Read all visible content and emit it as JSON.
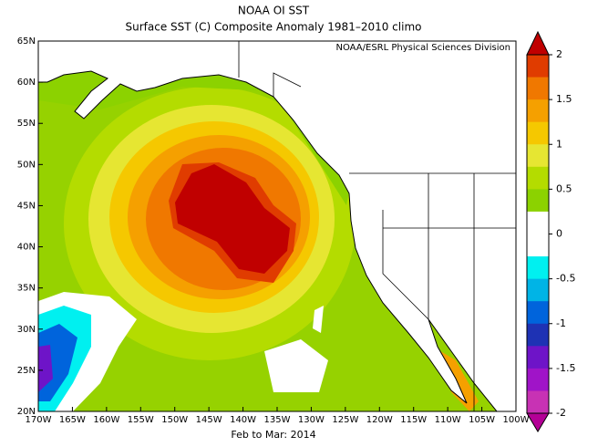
{
  "header": {
    "title": "NOAA OI SST",
    "subtitle": "Surface SST (C) Composite Anomaly 1981–2010 climo",
    "credit": "NOAA/ESRL Physical Sciences Division"
  },
  "map": {
    "lat_labels": [
      "65N",
      "60N",
      "55N",
      "50N",
      "45N",
      "40N",
      "35N",
      "30N",
      "25N",
      "20N"
    ],
    "lon_labels": [
      "170W",
      "165W",
      "160W",
      "155W",
      "150W",
      "145W",
      "140W",
      "135W",
      "130W",
      "125W",
      "120W",
      "115W",
      "110W",
      "105W",
      "100W"
    ],
    "footer": "Feb to Mar: 2014"
  },
  "colorbar": {
    "ticks": [
      2,
      1.5,
      1,
      0.5,
      0,
      -0.5,
      -1,
      -1.5,
      -2
    ],
    "colors": [
      "#c00000",
      "#e03c00",
      "#f07800",
      "#f5a000",
      "#f5c800",
      "#e6e632",
      "#b4dc00",
      "#8cd200",
      "#ffffff",
      "#ffffff",
      "#00f0f0",
      "#00b4e6",
      "#0064dc",
      "#1e32b4",
      "#6e14c8",
      "#a014c8",
      "#c832b4",
      "#b40096"
    ]
  }
}
